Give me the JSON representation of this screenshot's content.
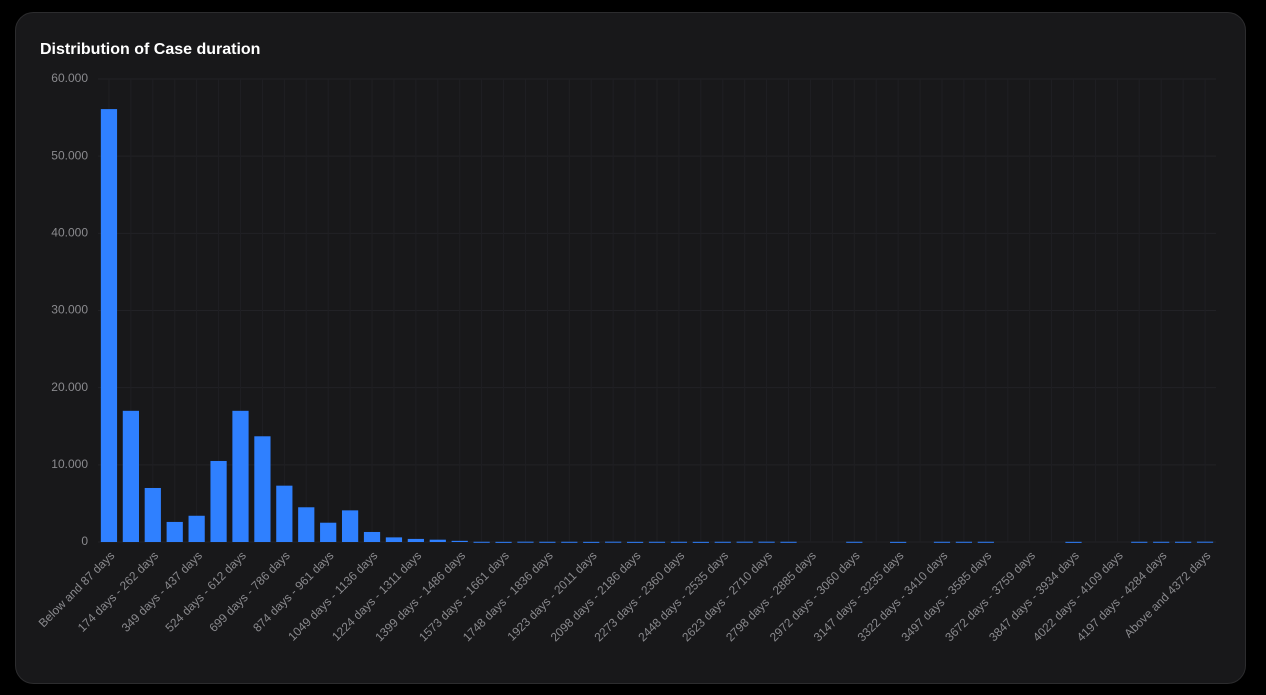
{
  "chart_data": {
    "type": "bar",
    "title": "Distribution of Case duration",
    "categories": [
      "Below and 87 days",
      null,
      "174 days - 262 days",
      null,
      "349 days - 437 days",
      null,
      "524 days - 612 days",
      null,
      "699 days - 786 days",
      null,
      "874 days - 961 days",
      null,
      "1049 days - 1136 days",
      null,
      "1224 days - 1311 days",
      null,
      "1399 days - 1486 days",
      null,
      "1573 days - 1661 days",
      null,
      "1748 days - 1836 days",
      null,
      "1923 days - 2011 days",
      null,
      "2098 days - 2186 days",
      null,
      "2273 days - 2360 days",
      null,
      "2448 days - 2535 days",
      null,
      "2623 days - 2710 days",
      null,
      "2798 days - 2885 days",
      null,
      "2972 days - 3060 days",
      null,
      "3147 days - 3235 days",
      null,
      "3322 days - 3410 days",
      null,
      "3497 days - 3585 days",
      null,
      "3672 days - 3759 days",
      null,
      "3847 days - 3934 days",
      null,
      "4022 days - 4109 days",
      null,
      "4197 days - 4284 days",
      null,
      "Above and 4372 days"
    ],
    "values": [
      56100,
      17000,
      7000,
      2600,
      3400,
      10500,
      17000,
      13700,
      7300,
      4500,
      2500,
      4100,
      1300,
      600,
      400,
      300,
      150,
      30,
      20,
      40,
      30,
      30,
      20,
      40,
      20,
      30,
      30,
      20,
      30,
      40,
      40,
      30,
      0,
      0,
      30,
      0,
      20,
      0,
      30,
      30,
      30,
      0,
      0,
      0,
      20,
      0,
      0,
      30,
      30,
      30,
      40
    ],
    "color": "#2f80ff",
    "ylim": [
      0,
      60000
    ],
    "yticks": [
      0,
      {
        "value": 10000,
        "label": "10.000"
      },
      {
        "value": 20000,
        "label": "20.000"
      },
      {
        "value": 30000,
        "label": "30.000"
      },
      {
        "value": 40000,
        "label": "40.000"
      },
      {
        "value": 50000,
        "label": "50.000"
      },
      {
        "value": 60000,
        "label": "60.000"
      }
    ],
    "grid": true
  }
}
